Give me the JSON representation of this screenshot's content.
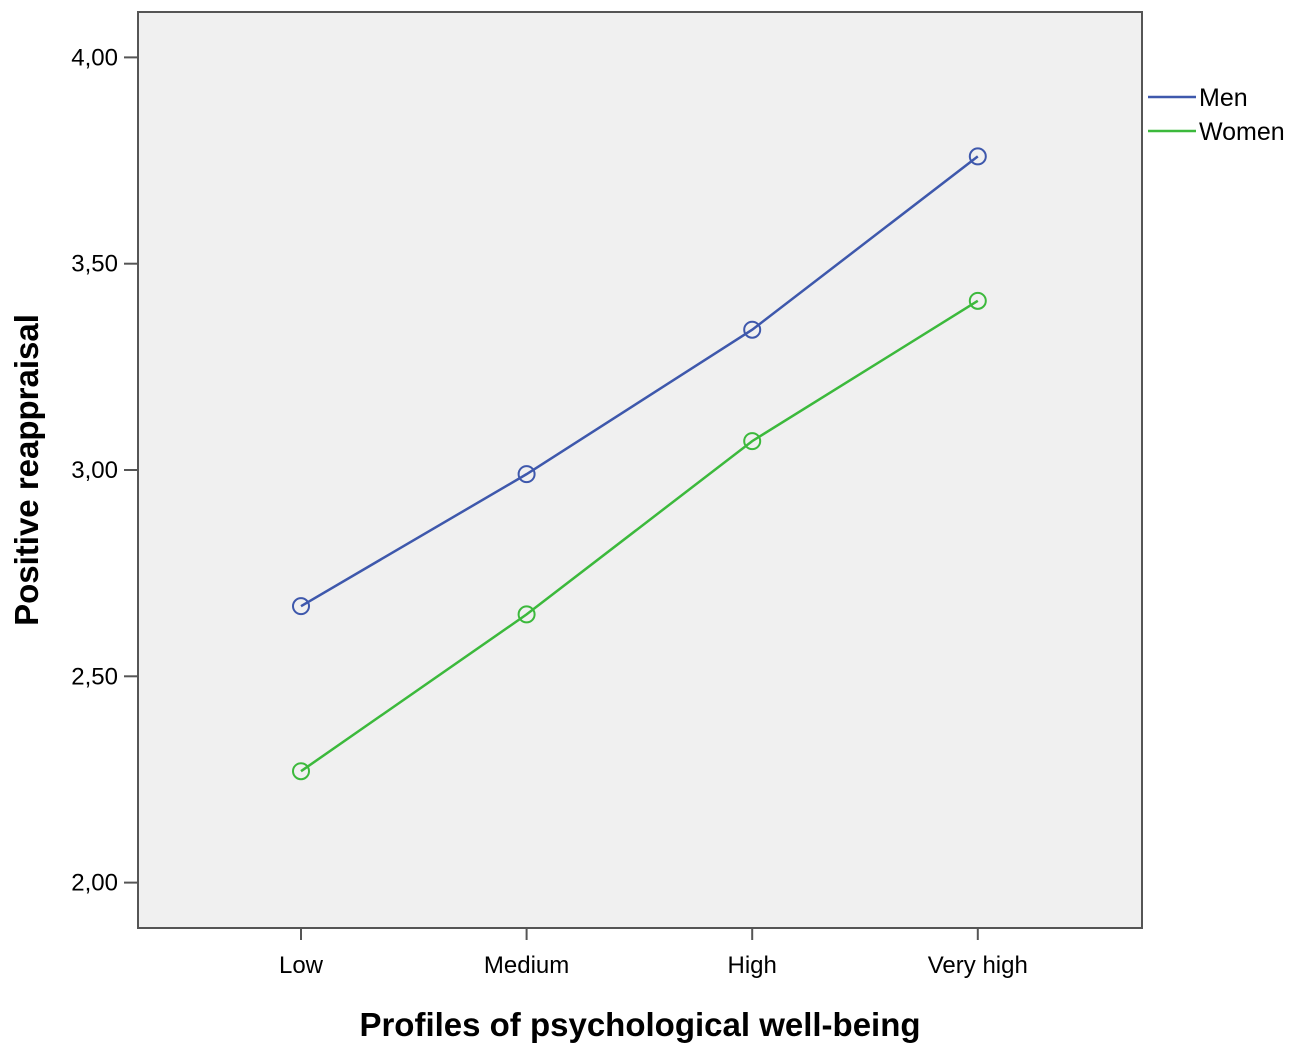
{
  "chart_data": {
    "type": "line",
    "title": "",
    "xlabel": "Profiles of psychological well-being",
    "ylabel": "Positive reappraisal",
    "categories": [
      "Low",
      "Medium",
      "High",
      "Very high"
    ],
    "ylim": [
      1.89,
      4.11
    ],
    "yticks": [
      2.0,
      2.5,
      3.0,
      3.5,
      4.0
    ],
    "ytick_labels": [
      "2,00",
      "2,50",
      "3,00",
      "3,50",
      "4,00"
    ],
    "grid": false,
    "legend_position": "right",
    "plot_background": "#f0f0f0",
    "series": [
      {
        "name": "Men",
        "color": "#3e58ac",
        "values": [
          2.67,
          2.99,
          3.34,
          3.76
        ]
      },
      {
        "name": "Women",
        "color": "#3cb93c",
        "values": [
          2.27,
          2.65,
          3.07,
          3.41
        ]
      }
    ]
  }
}
